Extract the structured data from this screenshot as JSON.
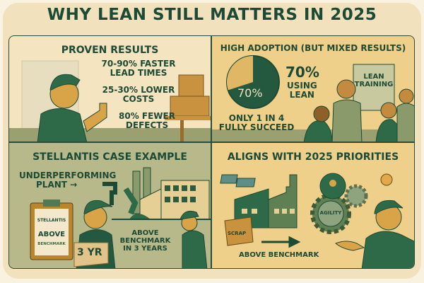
{
  "title": "WHY LEAN STILL MATTERS IN 2025",
  "proven": {
    "heading": "PROVEN RESULTS",
    "stat1a": "70-90% FASTER",
    "stat1b": "LEAD TIMES",
    "stat2a": "25-30% LOWER",
    "stat2b": "COSTS",
    "stat3a": "80% FEWER",
    "stat3b": "DEFECTS"
  },
  "adoption": {
    "heading": "HIGH ADOPTION (BUT MIXED RESULTS)",
    "pie_label": "70%",
    "pie_value_percent": 70,
    "big": "70%",
    "using1": "USING",
    "using2": "LEAN",
    "only1": "ONLY 1 IN 4",
    "only2": "FULLY SUCCEED",
    "board1": "LEAN",
    "board2": "TRAINING"
  },
  "stellantis": {
    "heading": "STELLANTIS CASE EXAMPLE",
    "under1": "UNDERPERFORMING",
    "under2": "PLANT →",
    "clip_brand": "STELLANTIS",
    "clip_above": "ABOVE",
    "clip_bench": "BENCHMARK",
    "box": "3 YR",
    "res1": "ABOVE",
    "res2": "BENCHMARK",
    "res3": "IN 3 YEARS"
  },
  "priorities": {
    "heading": "ALIGNS WITH 2025 PRIORITIES",
    "scrap": "SCRAP",
    "gear": "AGILITY",
    "bench": "ABOVE BENCHMARK"
  },
  "colors": {
    "green": "#1d4a35",
    "sand": "#efd08b",
    "cream": "#f4e4bf",
    "olive": "#b7b98a"
  }
}
